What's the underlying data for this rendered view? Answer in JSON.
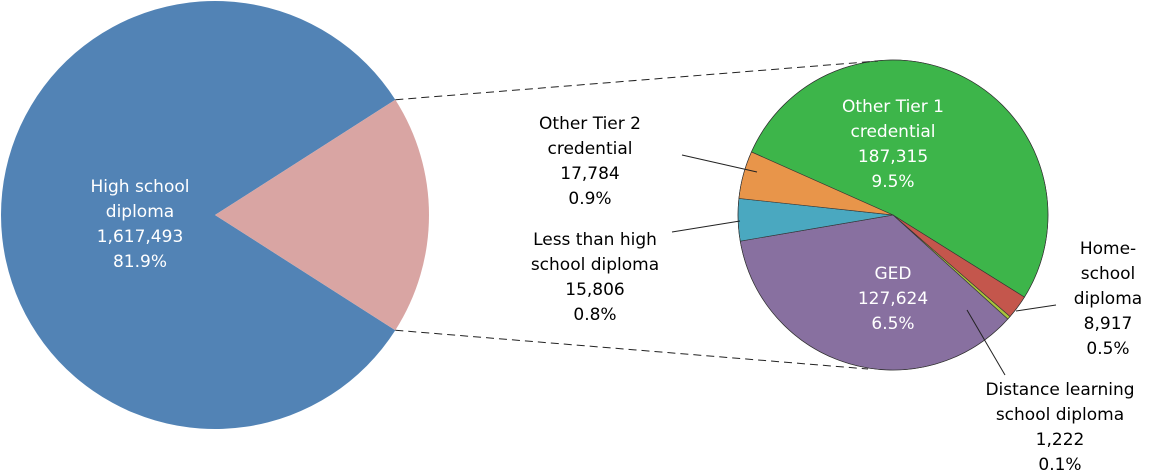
{
  "chart_data": {
    "type": "pie_of_pie",
    "main": {
      "categories": [
        "High school diploma"
      ],
      "values": [
        1617493
      ],
      "value_labels": [
        "1,617,493"
      ],
      "percents": [
        81.9
      ],
      "percent_labels": [
        "81.9%"
      ],
      "colors": [
        "#5283b5"
      ],
      "rest_color": "#d9a5a3"
    },
    "detail": {
      "categories": [
        "Other Tier 1 credential",
        "Home-school diploma",
        "Distance learning school diploma",
        "GED",
        "Less than high school diploma",
        "Other Tier 2 credential"
      ],
      "values": [
        187315,
        8917,
        1222,
        127624,
        15806,
        17784
      ],
      "value_labels": [
        "187,315",
        "8,917",
        "1,222",
        "127,624",
        "15,806",
        "17,784"
      ],
      "percents": [
        9.5,
        0.5,
        0.1,
        6.5,
        0.8,
        0.9
      ],
      "percent_labels": [
        "9.5%",
        "0.5%",
        "0.1%",
        "6.5%",
        "0.8%",
        "0.9%"
      ],
      "colors": [
        "#3db54a",
        "#c4564c",
        "#a8c43c",
        "#8870a0",
        "#4aa8c0",
        "#e8954a"
      ]
    }
  }
}
